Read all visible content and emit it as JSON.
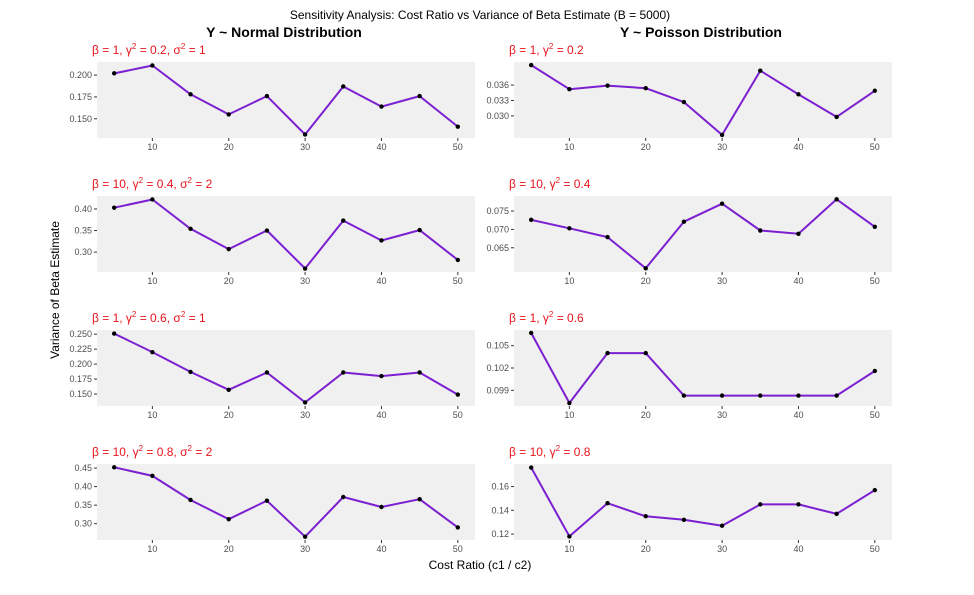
{
  "figure": {
    "title": "Sensitivity Analysis: Cost Ratio vs Variance of Beta Estimate (B = 5000)",
    "col_titles": [
      "Y ~ Normal Distribution",
      "Y ~ Poisson Distribution"
    ],
    "xlabel": "Cost Ratio (c1 / c2)",
    "ylabel": "Variance of Beta Estimate"
  },
  "colors": {
    "line": "#7b1fd1",
    "point": "#000000",
    "panel_bg": "#f0f0f0",
    "title": "#e8141c",
    "tick": "#4d4d4d"
  },
  "chart_data": [
    {
      "type": "line",
      "column": 0,
      "row": 0,
      "title_parts": {
        "beta": "1",
        "gamma2": "0.2",
        "sigma2": "1"
      },
      "x": [
        5,
        10,
        15,
        20,
        25,
        30,
        35,
        40,
        45,
        50
      ],
      "y": [
        0.202,
        0.211,
        0.178,
        0.155,
        0.176,
        0.132,
        0.187,
        0.164,
        0.176,
        0.141
      ],
      "xticks": [
        "10",
        "20",
        "30",
        "40",
        "50"
      ],
      "yticks": [
        "0.200",
        "0.175",
        "0.150"
      ],
      "xlim": [
        2.75,
        52.25
      ],
      "ylim": [
        0.128,
        0.215
      ]
    },
    {
      "type": "line",
      "column": 1,
      "row": 0,
      "title_parts": {
        "beta": "1",
        "gamma2": "0.2",
        "sigma2": ""
      },
      "x": [
        5,
        10,
        15,
        20,
        25,
        30,
        35,
        40,
        45,
        50
      ],
      "y": [
        0.0399,
        0.0352,
        0.0359,
        0.0354,
        0.0327,
        0.0263,
        0.0388,
        0.0342,
        0.0298,
        0.0349
      ],
      "xticks": [
        "10",
        "20",
        "30",
        "40",
        "50"
      ],
      "yticks": [
        "0.036",
        "0.033",
        "0.030"
      ],
      "xlim": [
        2.75,
        52.25
      ],
      "ylim": [
        0.0257,
        0.0405
      ]
    },
    {
      "type": "line",
      "column": 0,
      "row": 1,
      "title_parts": {
        "beta": "10",
        "gamma2": "0.4",
        "sigma2": "2"
      },
      "x": [
        5,
        10,
        15,
        20,
        25,
        30,
        35,
        40,
        45,
        50
      ],
      "y": [
        0.403,
        0.422,
        0.354,
        0.307,
        0.35,
        0.262,
        0.373,
        0.327,
        0.351,
        0.282
      ],
      "xticks": [
        "10",
        "20",
        "30",
        "40",
        "50"
      ],
      "yticks": [
        "0.40",
        "0.35",
        "0.30"
      ],
      "xlim": [
        2.75,
        52.25
      ],
      "ylim": [
        0.254,
        0.43
      ]
    },
    {
      "type": "line",
      "column": 1,
      "row": 1,
      "title_parts": {
        "beta": "10",
        "gamma2": "0.4",
        "sigma2": ""
      },
      "x": [
        5,
        10,
        15,
        20,
        25,
        30,
        35,
        40,
        45,
        50
      ],
      "y": [
        0.0726,
        0.0703,
        0.0679,
        0.0594,
        0.0721,
        0.077,
        0.0697,
        0.0688,
        0.0782,
        0.0707
      ],
      "xticks": [
        "10",
        "20",
        "30",
        "40",
        "50"
      ],
      "yticks": [
        "0.075",
        "0.070",
        "0.065"
      ],
      "xlim": [
        2.75,
        52.25
      ],
      "ylim": [
        0.0584,
        0.0791
      ]
    },
    {
      "type": "line",
      "column": 0,
      "row": 2,
      "title_parts": {
        "beta": "1",
        "gamma2": "0.6",
        "sigma2": "1"
      },
      "x": [
        5,
        10,
        15,
        20,
        25,
        30,
        35,
        40,
        45,
        50
      ],
      "y": [
        0.251,
        0.22,
        0.187,
        0.157,
        0.186,
        0.136,
        0.186,
        0.18,
        0.186,
        0.149
      ],
      "xticks": [
        "10",
        "20",
        "30",
        "40",
        "50"
      ],
      "yticks": [
        "0.250",
        "0.225",
        "0.200",
        "0.175",
        "0.150"
      ],
      "xlim": [
        2.75,
        52.25
      ],
      "ylim": [
        0.13,
        0.257
      ]
    },
    {
      "type": "line",
      "column": 1,
      "row": 2,
      "title_parts": {
        "beta": "1",
        "gamma2": "0.6",
        "sigma2": ""
      },
      "x": [
        5,
        10,
        15,
        20,
        25,
        30,
        35,
        40,
        45,
        50
      ],
      "y": [
        0.1067,
        0.0973,
        0.104,
        0.104,
        0.0983,
        0.0983,
        0.0983,
        0.0983,
        0.0983,
        0.1016
      ],
      "xticks": [
        "10",
        "20",
        "30",
        "40",
        "50"
      ],
      "yticks": [
        "0.105",
        "0.102",
        "0.099"
      ],
      "xlim": [
        2.75,
        52.25
      ],
      "ylim": [
        0.0969,
        0.1071
      ]
    },
    {
      "type": "line",
      "column": 0,
      "row": 3,
      "title_parts": {
        "beta": "10",
        "gamma2": "0.8",
        "sigma2": "2"
      },
      "x": [
        5,
        10,
        15,
        20,
        25,
        30,
        35,
        40,
        45,
        50
      ],
      "y": [
        0.452,
        0.429,
        0.364,
        0.312,
        0.362,
        0.265,
        0.372,
        0.345,
        0.366,
        0.29
      ],
      "xticks": [
        "10",
        "20",
        "30",
        "40",
        "50"
      ],
      "yticks": [
        "0.45",
        "0.40",
        "0.35",
        "0.30"
      ],
      "xlim": [
        2.75,
        52.25
      ],
      "ylim": [
        0.256,
        0.461
      ]
    },
    {
      "type": "line",
      "column": 1,
      "row": 3,
      "title_parts": {
        "beta": "10",
        "gamma2": "0.8",
        "sigma2": ""
      },
      "x": [
        5,
        10,
        15,
        20,
        25,
        30,
        35,
        40,
        45,
        50
      ],
      "y": [
        0.176,
        0.118,
        0.146,
        0.135,
        0.132,
        0.127,
        0.145,
        0.145,
        0.137,
        0.157
      ],
      "xticks": [
        "10",
        "20",
        "30",
        "40",
        "50"
      ],
      "yticks": [
        "0.16",
        "0.14",
        "0.12"
      ],
      "xlim": [
        2.75,
        52.25
      ],
      "ylim": [
        0.115,
        0.179
      ]
    }
  ]
}
